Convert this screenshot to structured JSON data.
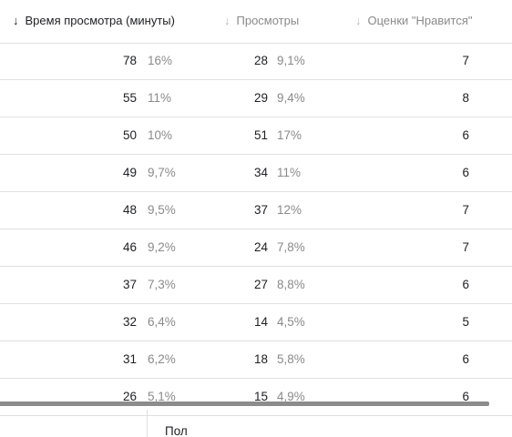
{
  "header": {
    "columns": [
      {
        "label": "Время просмотра (минуты)",
        "sorted": true
      },
      {
        "label": "Просмотры",
        "sorted": false
      },
      {
        "label": "Оценки \"Нравится\"",
        "sorted": false
      }
    ],
    "sort_arrow": "↓"
  },
  "rows": [
    {
      "watch_time": "78",
      "watch_time_pct": "16%",
      "views": "28",
      "views_pct": "9,1%",
      "likes": "7"
    },
    {
      "watch_time": "55",
      "watch_time_pct": "11%",
      "views": "29",
      "views_pct": "9,4%",
      "likes": "8"
    },
    {
      "watch_time": "50",
      "watch_time_pct": "10%",
      "views": "51",
      "views_pct": "17%",
      "likes": "6"
    },
    {
      "watch_time": "49",
      "watch_time_pct": "9,7%",
      "views": "34",
      "views_pct": "11%",
      "likes": "6"
    },
    {
      "watch_time": "48",
      "watch_time_pct": "9,5%",
      "views": "37",
      "views_pct": "12%",
      "likes": "7"
    },
    {
      "watch_time": "46",
      "watch_time_pct": "9,2%",
      "views": "24",
      "views_pct": "7,8%",
      "likes": "7"
    },
    {
      "watch_time": "37",
      "watch_time_pct": "7,3%",
      "views": "27",
      "views_pct": "8,8%",
      "likes": "6"
    },
    {
      "watch_time": "32",
      "watch_time_pct": "6,4%",
      "views": "14",
      "views_pct": "4,5%",
      "likes": "5"
    },
    {
      "watch_time": "31",
      "watch_time_pct": "6,2%",
      "views": "18",
      "views_pct": "5,8%",
      "likes": "6"
    },
    {
      "watch_time": "26",
      "watch_time_pct": "5,1%",
      "views": "15",
      "views_pct": "4,9%",
      "likes": "6"
    }
  ],
  "footer": {
    "label": "Пол"
  }
}
